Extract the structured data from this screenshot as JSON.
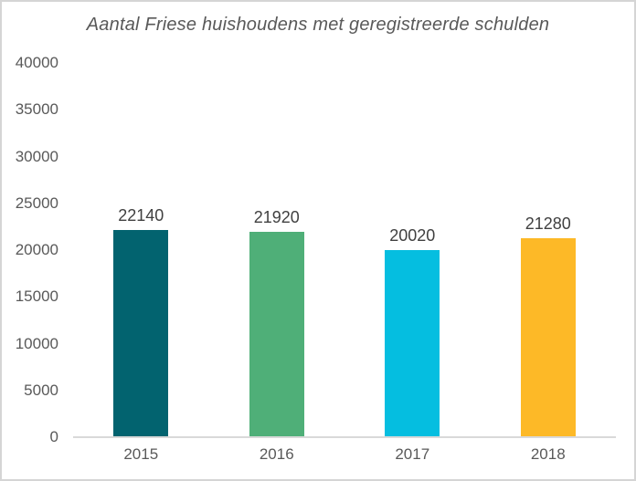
{
  "chart_data": {
    "type": "bar",
    "title": "Aantal Friese huishoudens met geregistreerde schulden",
    "categories": [
      "2015",
      "2016",
      "2017",
      "2018"
    ],
    "values": [
      22140,
      21920,
      20020,
      21280
    ],
    "data_labels": [
      "22140",
      "21920",
      "20020",
      "21280"
    ],
    "bar_colors": [
      "#02636F",
      "#4FAF78",
      "#05BEE0",
      "#FDB927"
    ],
    "xlabel": "",
    "ylabel": "",
    "ylim": [
      0,
      40000
    ],
    "ytick_step": 5000,
    "ytick_labels": [
      "0",
      "5000",
      "10000",
      "15000",
      "20000",
      "25000",
      "30000",
      "35000",
      "40000"
    ],
    "grid": false,
    "legend": "none"
  },
  "colors": {
    "background": "#FFFFFF",
    "border": "#D5D5D5",
    "axis_line": "#D9D9D9",
    "title_text": "#595959",
    "axis_text": "#595959",
    "data_label_text": "#404040"
  }
}
